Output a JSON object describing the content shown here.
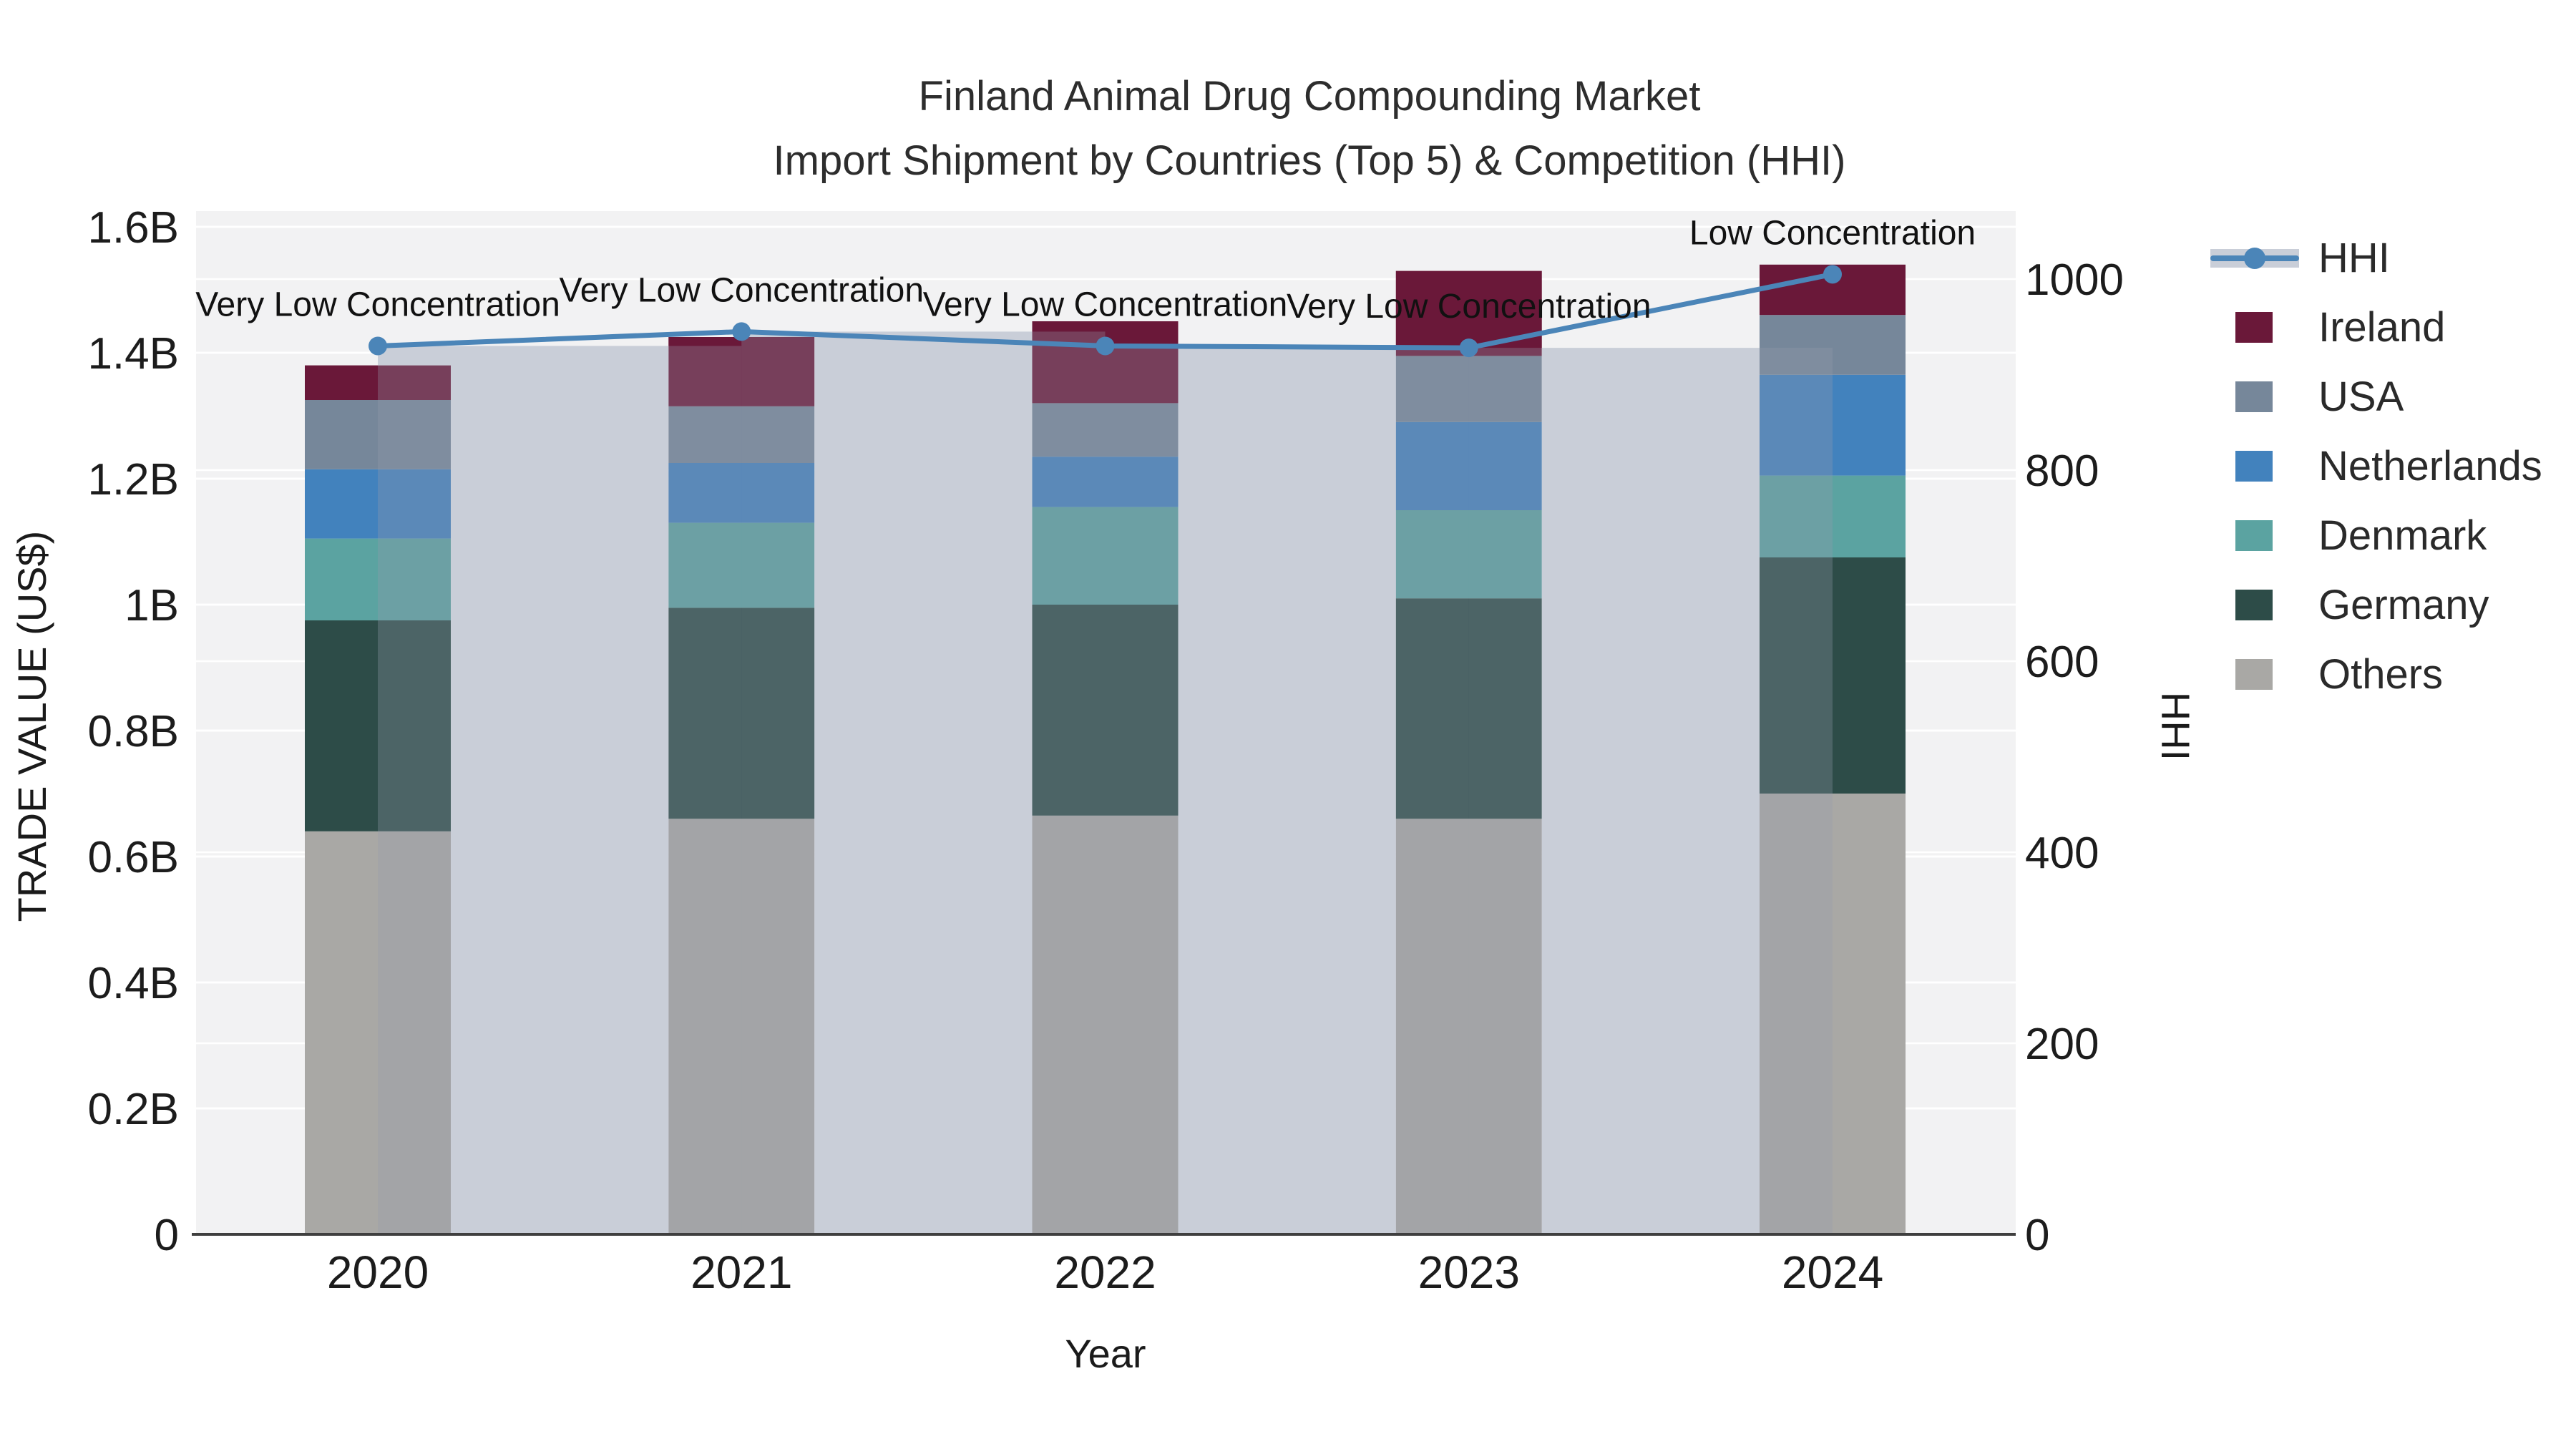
{
  "title": {
    "line1": "Finland Animal Drug Compounding Market",
    "line2": "Import Shipment by Countries (Top 5) & Competition (HHI)"
  },
  "axes": {
    "x": {
      "title": "Year",
      "ticks": [
        "2020",
        "2021",
        "2022",
        "2023",
        "2024"
      ]
    },
    "y_left": {
      "title": "TRADE VALUE (US$)",
      "tick_labels": [
        "0",
        "0.2B",
        "0.4B",
        "0.6B",
        "0.8B",
        "1B",
        "1.2B",
        "1.4B",
        "1.6B"
      ],
      "tick_values": [
        0,
        0.2,
        0.4,
        0.6,
        0.8,
        1.0,
        1.2,
        1.4,
        1.6
      ]
    },
    "y_right": {
      "title": "HHI",
      "tick_labels": [
        "0",
        "200",
        "400",
        "600",
        "800",
        "1000"
      ],
      "tick_values": [
        0,
        200,
        400,
        600,
        800,
        1000
      ]
    }
  },
  "chart_data": {
    "type": "bar",
    "subtype": "stacked-bars-with-step-area-line",
    "categories": [
      "2020",
      "2021",
      "2022",
      "2023",
      "2024"
    ],
    "unit": "billion US$",
    "series": [
      {
        "name": "Others",
        "color": "#a9a8a5",
        "values": [
          0.64,
          0.66,
          0.665,
          0.66,
          0.7
        ]
      },
      {
        "name": "Germany",
        "color": "#2d4c48",
        "values": [
          0.335,
          0.335,
          0.335,
          0.35,
          0.375
        ]
      },
      {
        "name": "Denmark",
        "color": "#5ba3a1",
        "values": [
          0.13,
          0.135,
          0.155,
          0.14,
          0.13
        ]
      },
      {
        "name": "Netherlands",
        "color": "#4282bd",
        "values": [
          0.11,
          0.095,
          0.08,
          0.14,
          0.16
        ]
      },
      {
        "name": "USA",
        "color": "#76879a",
        "values": [
          0.11,
          0.09,
          0.085,
          0.105,
          0.095
        ]
      },
      {
        "name": "Ireland",
        "color": "#6a1839",
        "values": [
          0.055,
          0.11,
          0.13,
          0.135,
          0.08
        ]
      }
    ],
    "totals": [
      1.38,
      1.425,
      1.45,
      1.53,
      1.54
    ],
    "hhi": {
      "name": "HHI",
      "values": [
        930,
        945,
        930,
        928,
        1005
      ],
      "line_color": "#4b85b8",
      "fill_color": "#c9ced8",
      "overlay_color": "rgba(148,157,172,0.30)"
    },
    "annotations": [
      "Very Low Concentration",
      "Very Low Concentration",
      "Very Low Concentration",
      "Very Low Concentration",
      "Low Concentration"
    ],
    "ylabel": "TRADE VALUE (US$)",
    "y2label": "HHI",
    "xlabel": "Year",
    "ylim": [
      0,
      1.6
    ],
    "y2lim": [
      0,
      1082
    ],
    "grid": true,
    "legend_position": "right",
    "plot_bg": "#f2f2f3",
    "grid_color": "#ffffff",
    "axis_line_color": "#3f3f3f",
    "text_color": "#1c1c1c"
  },
  "legend": {
    "items": [
      {
        "label": "HHI",
        "type": "line",
        "color": "#4b85b8"
      },
      {
        "label": "Ireland",
        "type": "square",
        "color": "#6a1839"
      },
      {
        "label": "USA",
        "type": "square",
        "color": "#76879a"
      },
      {
        "label": "Netherlands",
        "type": "square",
        "color": "#4282bd"
      },
      {
        "label": "Denmark",
        "type": "square",
        "color": "#5ba3a1"
      },
      {
        "label": "Germany",
        "type": "square",
        "color": "#2d4c48"
      },
      {
        "label": "Others",
        "type": "square",
        "color": "#a9a8a5"
      }
    ]
  }
}
